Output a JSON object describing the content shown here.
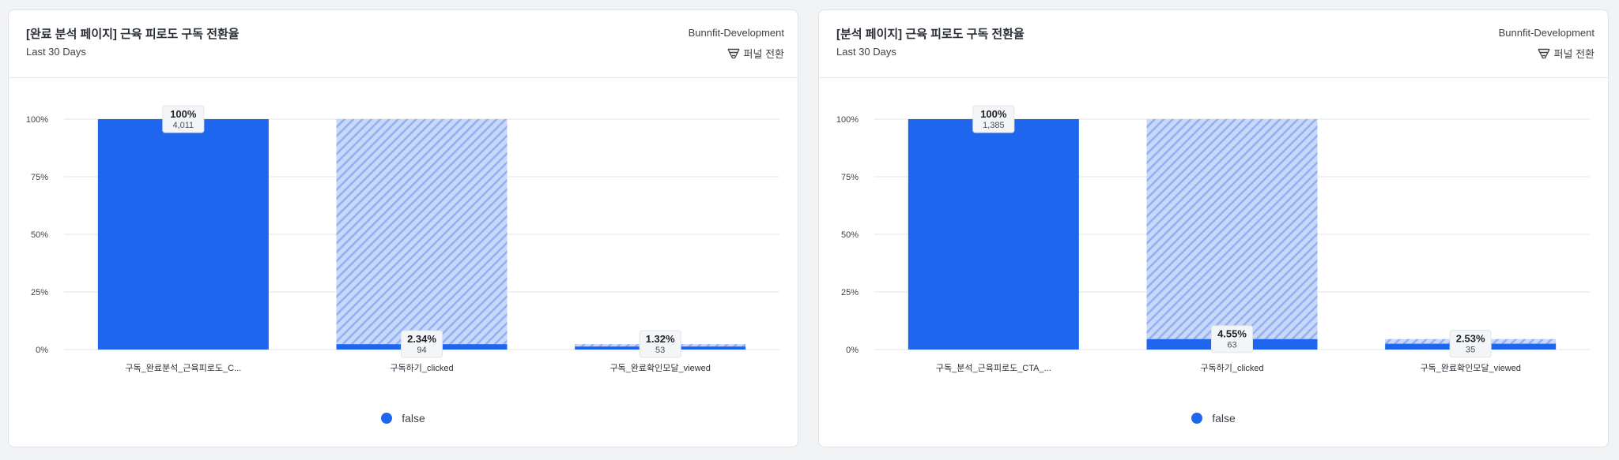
{
  "colors": {
    "bar": "#1f66ef",
    "bar_light": "#c9d8f8",
    "bar_stripe": "#8fb0f2",
    "grid": "#e3e6ea",
    "label_box": "#f4f5f7"
  },
  "cards": [
    {
      "title": "[완료 분석 페이지] 근육 피로도 구독 전환율",
      "subtitle": "Last 30 Days",
      "project": "Bunnfit-Development",
      "metric_label": "퍼널 전환",
      "metric_icon": "funnel-icon",
      "legend": {
        "label": "false"
      }
    },
    {
      "title": "[분석 페이지] 근육 피로도 구독 전환율",
      "subtitle": "Last 30 Days",
      "project": "Bunnfit-Development",
      "metric_label": "퍼널 전환",
      "metric_icon": "funnel-icon",
      "legend": {
        "label": "false"
      }
    }
  ],
  "chart_data": [
    {
      "type": "bar",
      "ylim": [
        0,
        100
      ],
      "ytick_labels": [
        "0%",
        "25%",
        "50%",
        "75%",
        "100%"
      ],
      "categories": [
        "구독_완료분석_근육피로도_C...",
        "구독하기_clicked",
        "구독_완료확인모달_viewed"
      ],
      "series": [
        {
          "name": "false",
          "values": [
            100,
            2.34,
            1.32
          ],
          "pct_labels": [
            "100%",
            "2.34%",
            "1.32%"
          ],
          "counts": [
            "4,011",
            "94",
            "53"
          ]
        }
      ],
      "dropoff_top": [
        100,
        100,
        2.34
      ]
    },
    {
      "type": "bar",
      "ylim": [
        0,
        100
      ],
      "ytick_labels": [
        "0%",
        "25%",
        "50%",
        "75%",
        "100%"
      ],
      "categories": [
        "구독_분석_근육피로도_CTA_...",
        "구독하기_clicked",
        "구독_완료확인모달_viewed"
      ],
      "series": [
        {
          "name": "false",
          "values": [
            100,
            4.55,
            2.53
          ],
          "pct_labels": [
            "100%",
            "4.55%",
            "2.53%"
          ],
          "counts": [
            "1,385",
            "63",
            "35"
          ]
        }
      ],
      "dropoff_top": [
        100,
        100,
        4.55
      ]
    }
  ]
}
